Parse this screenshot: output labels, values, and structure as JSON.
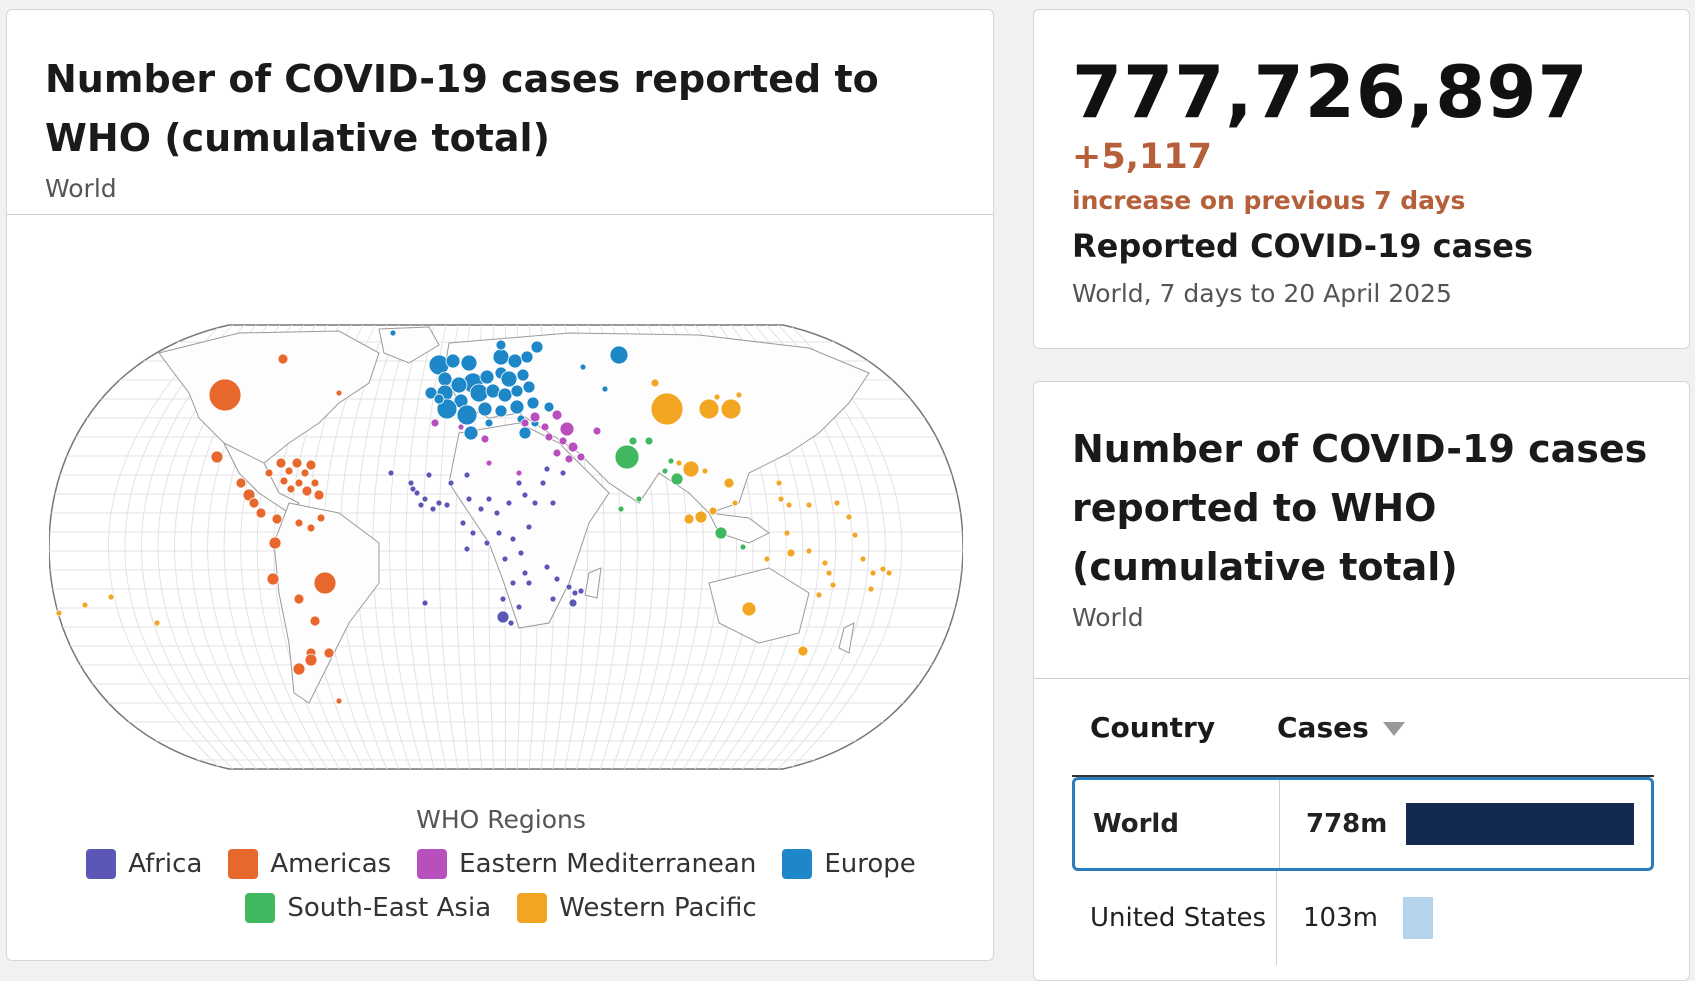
{
  "map_card": {
    "title": "Number of COVID-19 cases reported to WHO (cumulative total)",
    "subtitle": "World",
    "legend_title": "WHO Regions",
    "regions": [
      {
        "name": "Africa",
        "color": "#5b57b5"
      },
      {
        "name": "Americas",
        "color": "#e8672c"
      },
      {
        "name": "Eastern Mediterranean",
        "color": "#b94fbd"
      },
      {
        "name": "Europe",
        "color": "#1e87c8"
      },
      {
        "name": "South-East Asia",
        "color": "#3fb860"
      },
      {
        "name": "Western Pacific",
        "color": "#f2a623"
      }
    ]
  },
  "stat_card": {
    "total": "777,726,897",
    "increase": "+5,117",
    "increase_text": "increase on previous 7 days",
    "label": "Reported COVID-19 cases",
    "sub": "World, 7 days to 20 April 2025"
  },
  "table_card": {
    "title": "Number of COVID-19 cases reported to WHO (cumulative total)",
    "subtitle": "World",
    "columns": {
      "country": "Country",
      "cases": "Cases"
    },
    "rows": [
      {
        "country": "World",
        "cases": "778m",
        "fraction": 1.0,
        "color": "#13294f",
        "selected": true
      },
      {
        "country": "United States",
        "cases": "103m",
        "fraction": 0.132,
        "color": "#b3d4ec",
        "selected": false
      }
    ]
  }
}
